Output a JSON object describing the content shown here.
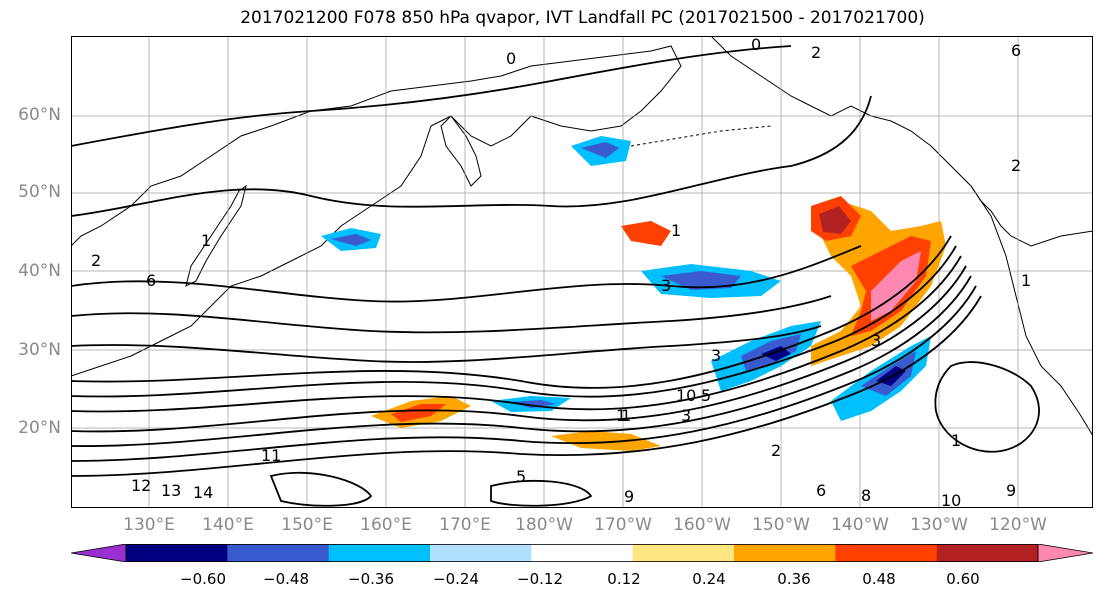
{
  "title": "2017021200 F078 850 hPa qvapor, IVT Landfall PC (2017021500 - 2017021700)",
  "latitude_labels": [
    "60°N",
    "50°N",
    "40°N",
    "30°N",
    "20°N"
  ],
  "longitude_labels": [
    "130°E",
    "140°E",
    "150°E",
    "160°E",
    "170°E",
    "180°W",
    "170°W",
    "160°W",
    "150°W",
    "140°W",
    "130°W",
    "120°W"
  ],
  "contour_labels": [
    "0",
    "0",
    "2",
    "1",
    "2",
    "3",
    "1",
    "3",
    "6",
    "6",
    "5",
    "3",
    "11",
    "12",
    "13",
    "14",
    "1",
    "2",
    "9",
    "5",
    "6",
    "8",
    "9",
    "10",
    "1",
    "3",
    "10",
    "1",
    "1",
    "2"
  ],
  "colorbar": {
    "tick_labels": [
      "−0.60",
      "−0.48",
      "−0.36",
      "−0.24",
      "−0.12",
      "0.12",
      "0.24",
      "0.36",
      "0.48",
      "0.60"
    ],
    "colors": [
      "#9b30d0",
      "#000080",
      "#3a5bd0",
      "#00bfff",
      "#b0e2ff",
      "#ffffff",
      "#ffe680",
      "#ffa500",
      "#ff4000",
      "#b22222",
      "#ff88b0"
    ]
  },
  "style": {
    "ocean_fill": "#ffffff",
    "coastline_color": "#000000",
    "contour_color": "#000000",
    "gridline_color": "#999999"
  }
}
